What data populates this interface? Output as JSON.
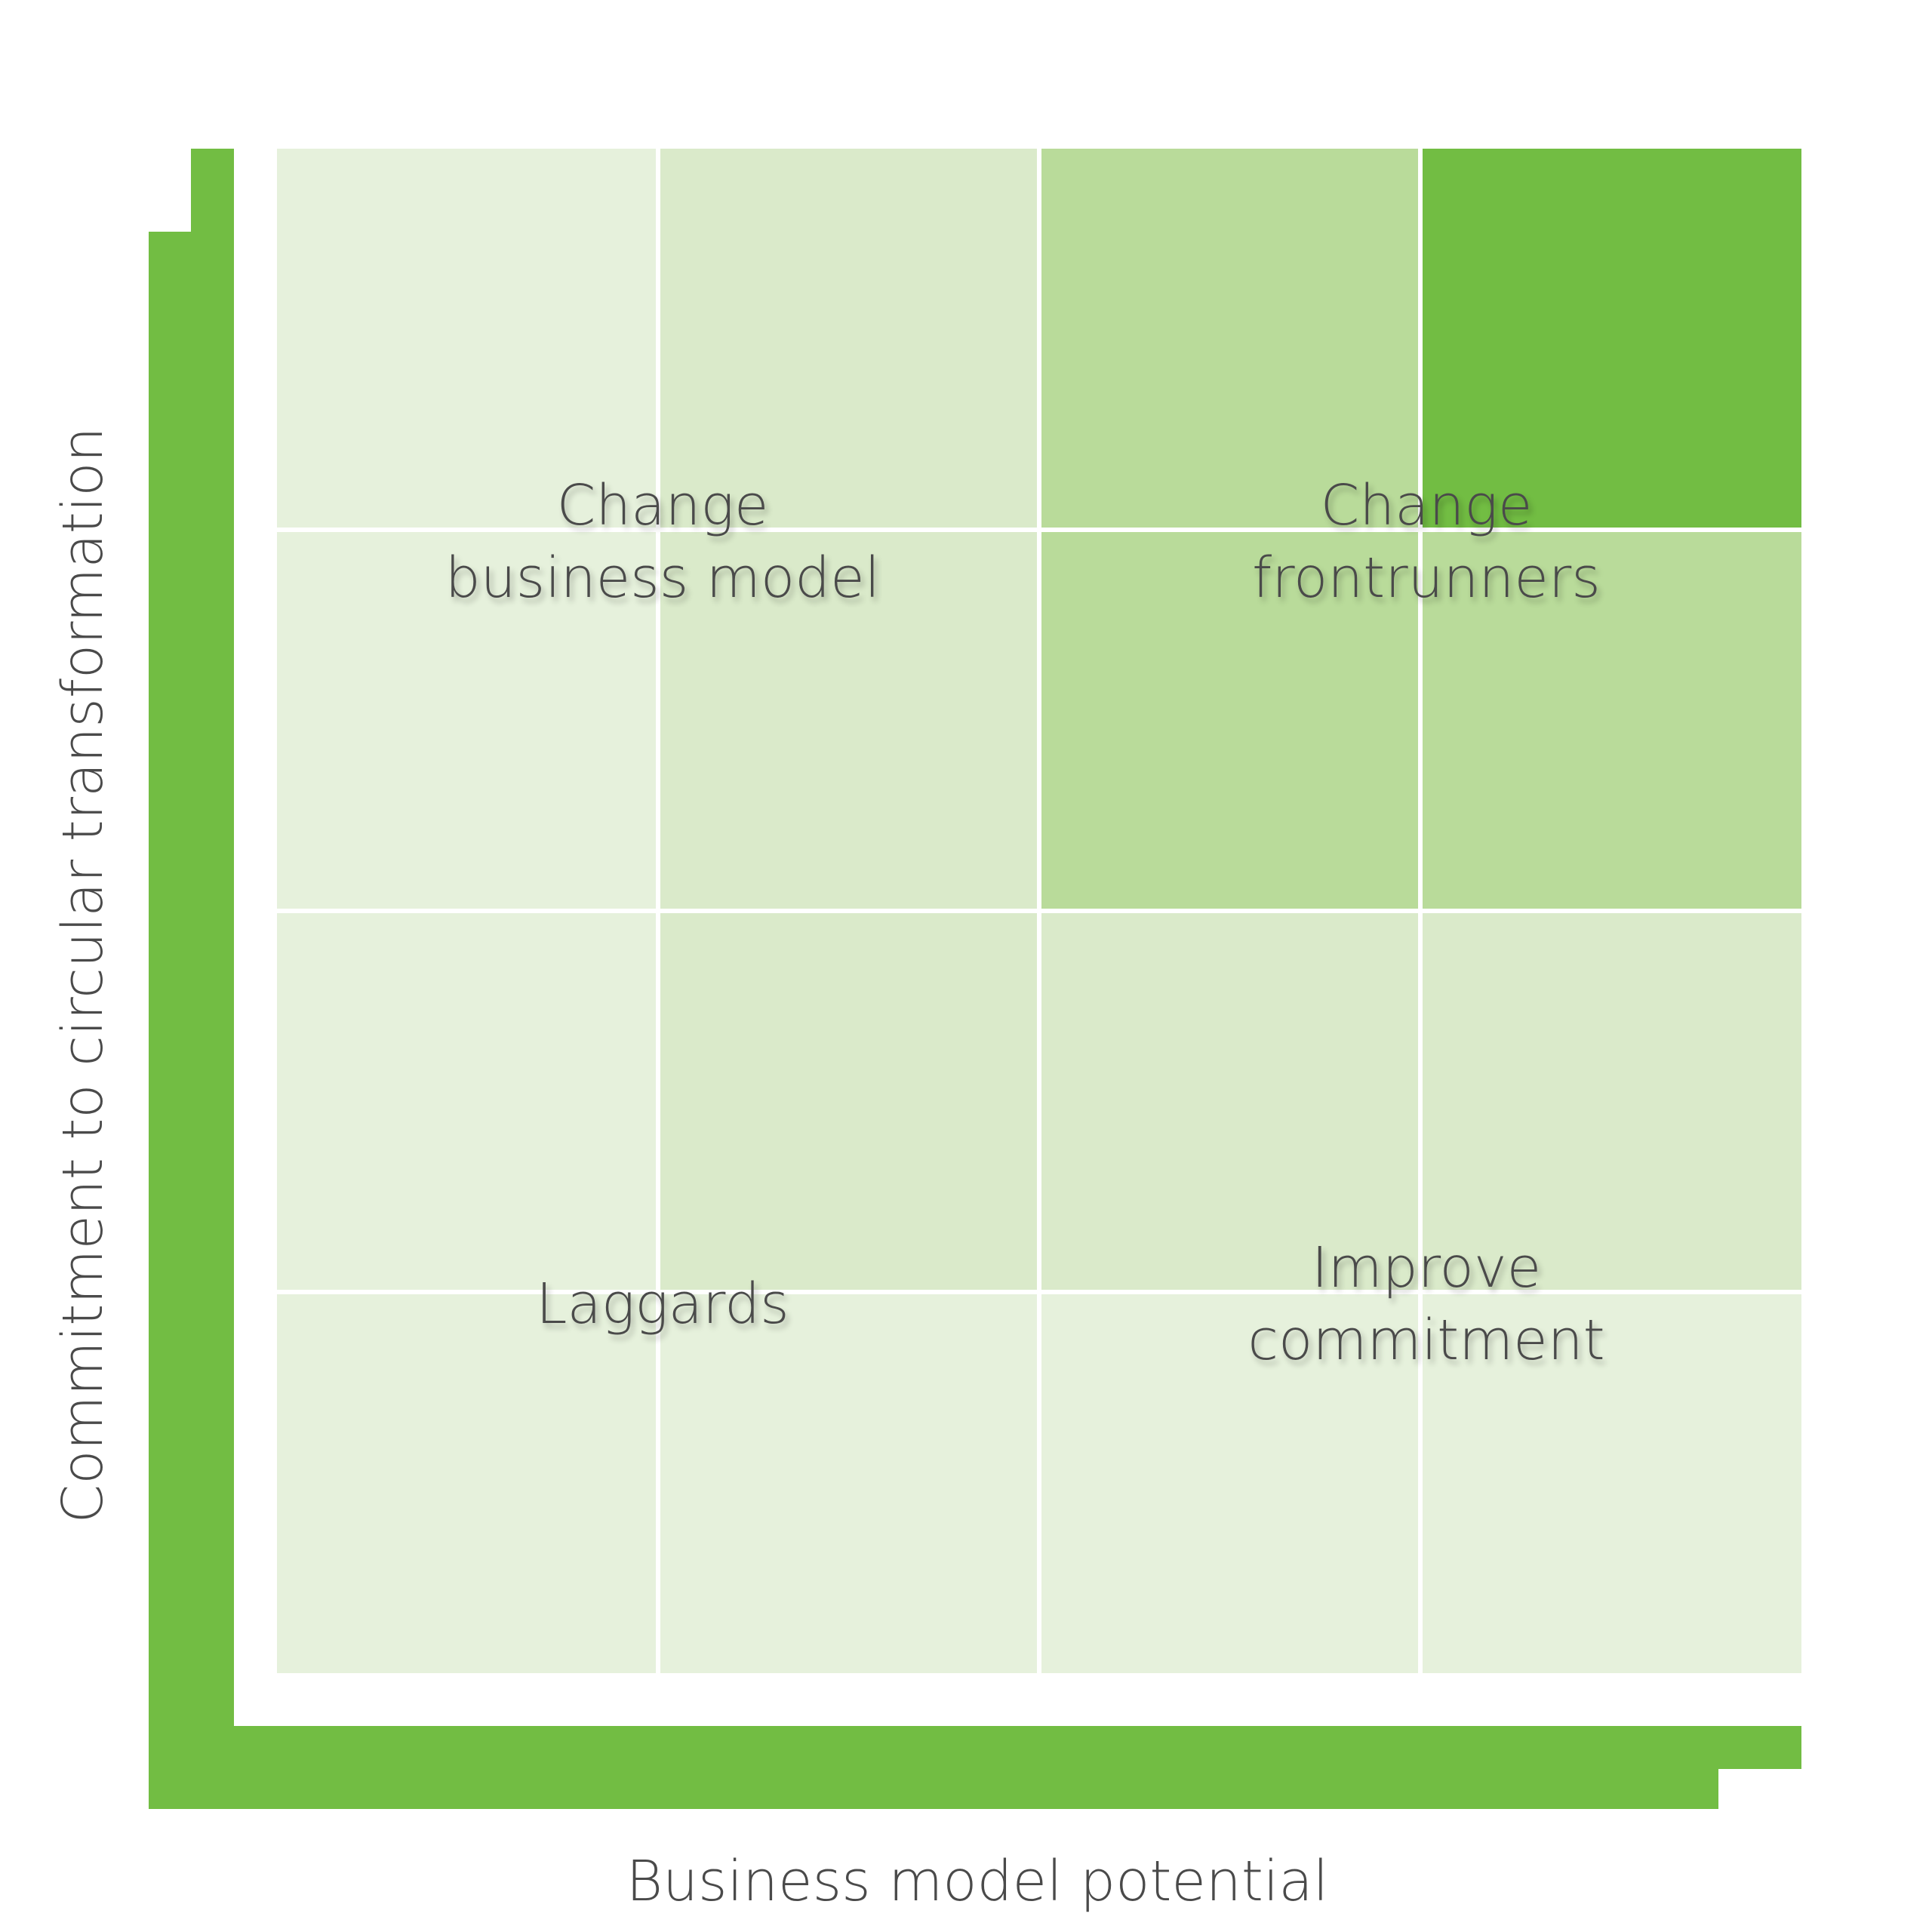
{
  "colors": {
    "axis_green": "#72bd43",
    "lightest": "#e6f1dc",
    "light": "#daeaca",
    "medium": "#b9db9a",
    "strong": "#72bd43",
    "text": "#4a4a4a"
  },
  "grid": {
    "rows": [
      [
        "lightest",
        "light",
        "medium",
        "strong"
      ],
      [
        "lightest",
        "light",
        "medium",
        "medium"
      ],
      [
        "lightest",
        "light",
        "light",
        "light"
      ],
      [
        "lightest",
        "lightest",
        "lightest",
        "lightest"
      ]
    ]
  },
  "quadrants": {
    "top_left": {
      "line1": "Change",
      "line2": "business model"
    },
    "top_right": {
      "line1": "Change",
      "line2": "frontrunners"
    },
    "bottom_left": {
      "line1": "Laggards"
    },
    "bottom_right": {
      "line1": "Improve",
      "line2": "commitment"
    }
  },
  "axes": {
    "x_title": "Business model potential",
    "y_title": "Commitment to circular transformation"
  }
}
